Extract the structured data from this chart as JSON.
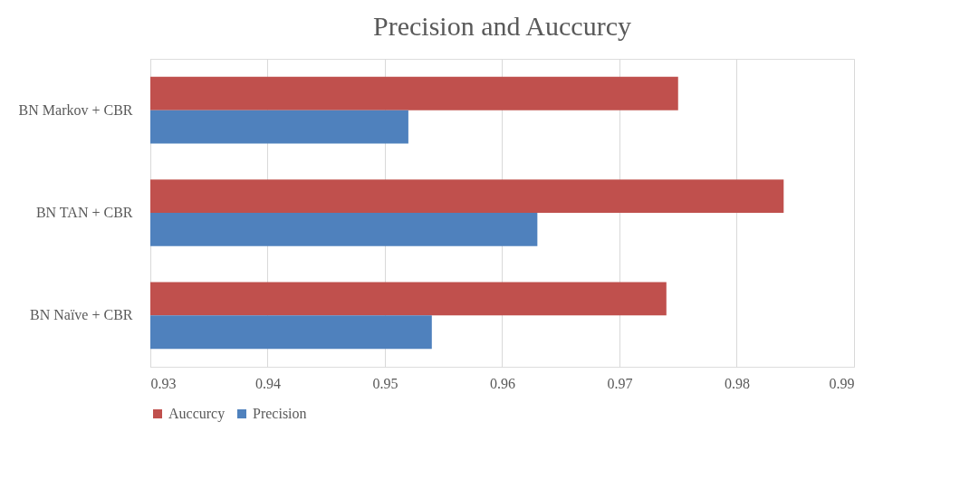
{
  "chart_data": {
    "type": "bar",
    "orientation": "horizontal",
    "title": "Precision and Auccurcy",
    "categories": [
      "BN Markov + CBR",
      "BN TAN + CBR",
      "BN Naïve + CBR"
    ],
    "series": [
      {
        "name": "Auccurcy",
        "color": "#c0504d",
        "values": [
          0.975,
          0.984,
          0.974
        ]
      },
      {
        "name": "Precision",
        "color": "#4f81bd",
        "values": [
          0.952,
          0.963,
          0.954
        ]
      }
    ],
    "xlim": [
      0.93,
      0.99
    ],
    "xticks": [
      0.93,
      0.94,
      0.95,
      0.96,
      0.97,
      0.98,
      0.99
    ],
    "grid": "x",
    "legend": "bottom"
  }
}
